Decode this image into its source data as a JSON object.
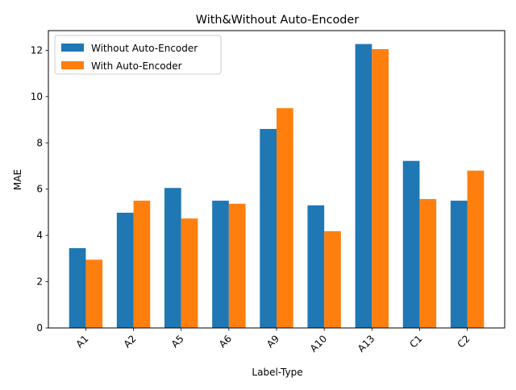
{
  "chart_data": {
    "type": "bar",
    "title": "With&Without Auto-Encoder",
    "xlabel": "Label-Type",
    "ylabel": "MAE",
    "categories": [
      "A1",
      "A2",
      "A5",
      "A6",
      "A9",
      "A10",
      "A13",
      "C1",
      "C2"
    ],
    "series": [
      {
        "name": "Without Auto-Encoder",
        "color": "#1f77b4",
        "values": [
          3.45,
          4.98,
          6.05,
          5.5,
          8.6,
          5.3,
          12.27,
          7.22,
          5.5
        ]
      },
      {
        "name": "With Auto-Encoder",
        "color": "#ff7f0e",
        "values": [
          2.95,
          5.5,
          4.73,
          5.37,
          9.5,
          4.18,
          12.05,
          5.57,
          6.8
        ]
      }
    ],
    "ylim": [
      0,
      12.85
    ],
    "yticks": [
      0,
      2,
      4,
      6,
      8,
      10,
      12
    ],
    "xtick_rotation": 45,
    "grid": false,
    "legend_position": "upper left"
  }
}
